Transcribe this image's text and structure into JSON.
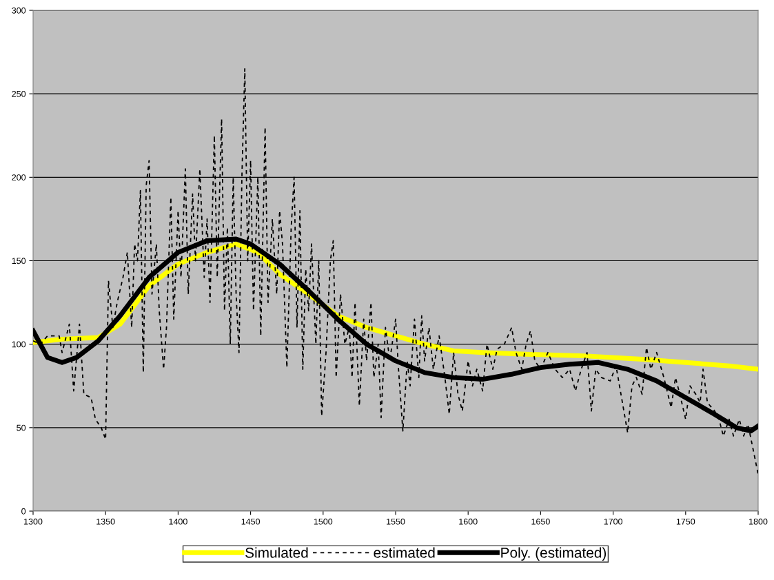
{
  "chart_data": {
    "type": "line",
    "xlim": [
      1300,
      1800
    ],
    "xticks": [
      1300,
      1350,
      1400,
      1450,
      1500,
      1550,
      1600,
      1650,
      1700,
      1750,
      1800
    ],
    "ylim": [
      0,
      300
    ],
    "yticks": [
      0,
      50,
      100,
      150,
      200,
      250,
      300
    ],
    "grid": "y",
    "legend": "bottom",
    "marker": "none",
    "series": [
      {
        "name": "Simulated",
        "color": "#ffff00",
        "line_style": "solid",
        "x": [
          1300,
          1320,
          1345,
          1360,
          1380,
          1400,
          1420,
          1440,
          1455,
          1470,
          1490,
          1510,
          1530,
          1550,
          1570,
          1590,
          1610,
          1640,
          1680,
          1720,
          1750,
          1780,
          1800
        ],
        "values": [
          101,
          103,
          104,
          112,
          135,
          148,
          155,
          160,
          155,
          142,
          130,
          117,
          110,
          105,
          100,
          96,
          95,
          94,
          93,
          91,
          89,
          87,
          85
        ]
      },
      {
        "name": "estimated",
        "color": "#000000",
        "line_style": "dashed",
        "x": [
          1300,
          1305,
          1310,
          1318,
          1320,
          1325,
          1328,
          1332,
          1335,
          1340,
          1343,
          1347,
          1350,
          1352,
          1355,
          1358,
          1362,
          1365,
          1368,
          1370,
          1372,
          1374,
          1376,
          1378,
          1380,
          1382,
          1385,
          1387,
          1390,
          1392,
          1395,
          1397,
          1400,
          1402,
          1405,
          1407,
          1410,
          1412,
          1415,
          1418,
          1420,
          1422,
          1425,
          1427,
          1430,
          1432,
          1434,
          1436,
          1438,
          1440,
          1442,
          1444,
          1446,
          1448,
          1450,
          1452,
          1455,
          1457,
          1460,
          1462,
          1465,
          1468,
          1470,
          1472,
          1475,
          1478,
          1480,
          1482,
          1484,
          1486,
          1488,
          1490,
          1492,
          1495,
          1497,
          1499,
          1502,
          1505,
          1507,
          1509,
          1512,
          1515,
          1518,
          1520,
          1522,
          1525,
          1528,
          1530,
          1533,
          1535,
          1538,
          1540,
          1543,
          1546,
          1550,
          1552,
          1555,
          1558,
          1560,
          1563,
          1566,
          1568,
          1570,
          1573,
          1576,
          1580,
          1584,
          1587,
          1590,
          1593,
          1596,
          1600,
          1603,
          1606,
          1610,
          1613,
          1617,
          1620,
          1625,
          1630,
          1633,
          1637,
          1640,
          1643,
          1646,
          1650,
          1655,
          1660,
          1665,
          1670,
          1674,
          1678,
          1682,
          1685,
          1688,
          1692,
          1698,
          1702,
          1706,
          1710,
          1713,
          1716,
          1720,
          1723,
          1726,
          1730,
          1735,
          1740,
          1743,
          1746,
          1750,
          1753,
          1757,
          1760,
          1762,
          1765,
          1770,
          1773,
          1776,
          1780,
          1783,
          1787,
          1790,
          1793,
          1797,
          1800
        ],
        "values": [
          102,
          100,
          105,
          105,
          95,
          112,
          72,
          112,
          70,
          68,
          55,
          50,
          43,
          138,
          110,
          125,
          140,
          155,
          110,
          160,
          150,
          192,
          83,
          195,
          210,
          130,
          160,
          120,
          85,
          110,
          188,
          115,
          180,
          140,
          205,
          130,
          190,
          150,
          205,
          140,
          175,
          125,
          225,
          140,
          235,
          120,
          170,
          100,
          200,
          130,
          95,
          200,
          265,
          150,
          210,
          120,
          200,
          105,
          230,
          125,
          175,
          130,
          180,
          160,
          86,
          170,
          200,
          110,
          180,
          85,
          145,
          120,
          160,
          100,
          150,
          57,
          95,
          150,
          162,
          80,
          130,
          100,
          110,
          80,
          125,
          63,
          115,
          90,
          125,
          80,
          100,
          56,
          110,
          90,
          115,
          85,
          48,
          90,
          75,
          115,
          80,
          117,
          90,
          110,
          85,
          105,
          80,
          58,
          95,
          70,
          60,
          90,
          75,
          85,
          72,
          100,
          85,
          97,
          100,
          110,
          95,
          85,
          100,
          108,
          90,
          85,
          95,
          85,
          80,
          85,
          72,
          85,
          95,
          60,
          85,
          80,
          78,
          87,
          67,
          47,
          75,
          80,
          70,
          98,
          85,
          95,
          80,
          62,
          80,
          70,
          55,
          75,
          70,
          65,
          85,
          65,
          60,
          55,
          45,
          55,
          45,
          55,
          45,
          52,
          35,
          22
        ]
      },
      {
        "name": "Poly. (estimated)",
        "color": "#000000",
        "line_style": "solid",
        "x": [
          1300,
          1310,
          1320,
          1330,
          1345,
          1360,
          1380,
          1400,
          1420,
          1440,
          1450,
          1470,
          1490,
          1510,
          1530,
          1550,
          1570,
          1590,
          1610,
          1630,
          1650,
          1670,
          1690,
          1710,
          1730,
          1750,
          1770,
          1785,
          1795,
          1800
        ],
        "values": [
          108,
          92,
          89,
          92,
          102,
          117,
          140,
          155,
          162,
          163,
          160,
          148,
          132,
          115,
          100,
          90,
          83,
          80,
          79,
          82,
          86,
          88,
          89,
          85,
          78,
          68,
          58,
          50,
          48,
          51
        ]
      }
    ]
  }
}
